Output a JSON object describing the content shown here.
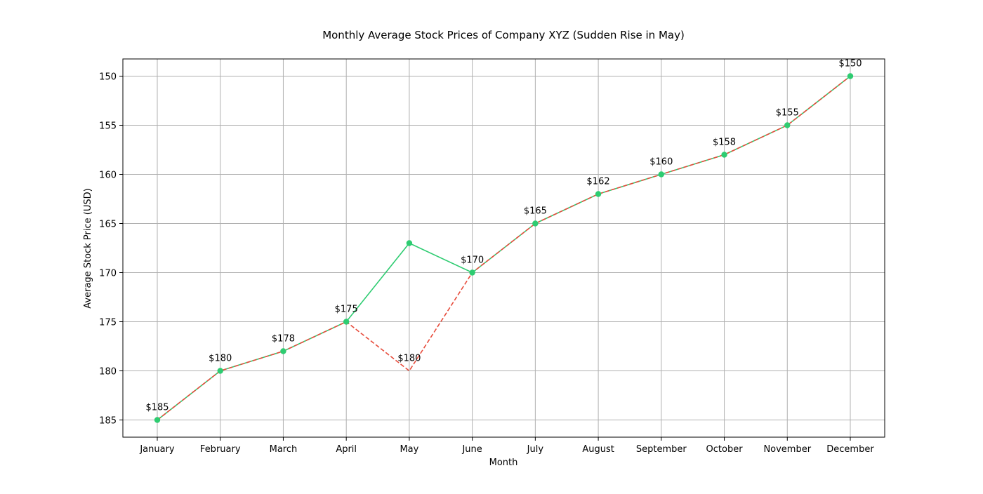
{
  "chart_data": {
    "type": "line",
    "title": "Monthly Average Stock Prices of Company XYZ (Sudden Rise in May)",
    "xlabel": "Month",
    "ylabel": "Average Stock Price (USD)",
    "categories": [
      "January",
      "February",
      "March",
      "April",
      "May",
      "June",
      "July",
      "August",
      "September",
      "October",
      "November",
      "December"
    ],
    "ylim": [
      186.75,
      148.25
    ],
    "y_inverted": true,
    "yticks": [
      150,
      155,
      160,
      165,
      170,
      175,
      180,
      185
    ],
    "grid": true,
    "series": [
      {
        "values": [
          185,
          180,
          178,
          175,
          167,
          170,
          165,
          162,
          160,
          158,
          155,
          150
        ],
        "color": "#2ecc71",
        "line_style": "solid",
        "marker": "circle"
      },
      {
        "values": [
          185,
          180,
          178,
          175,
          180,
          170,
          165,
          162,
          160,
          158,
          155,
          150
        ],
        "color": "#e74c3c",
        "line_style": "dashed",
        "marker": "none"
      }
    ],
    "data_labels": [
      "$185",
      "$180",
      "$178",
      "$175",
      "$180",
      "$170",
      "$165",
      "$162",
      "$160",
      "$158",
      "$155",
      "$150"
    ],
    "data_label_values": [
      185,
      180,
      178,
      175,
      180,
      170,
      165,
      162,
      160,
      158,
      155,
      150
    ]
  }
}
